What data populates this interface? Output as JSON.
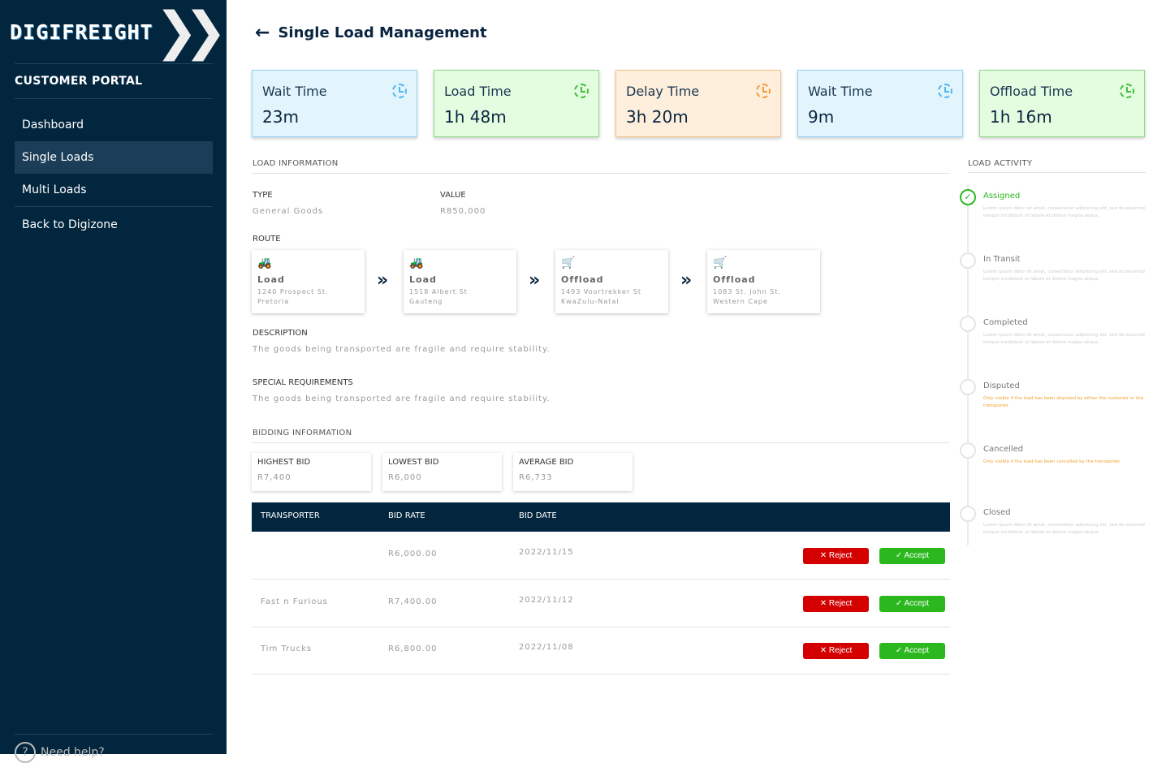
{
  "sidebar": {
    "logo": "DIGIFREIGHT",
    "portal": "CUSTOMER PORTAL",
    "items": [
      {
        "label": "Dashboard"
      },
      {
        "label": "Single Loads"
      },
      {
        "label": "Multi Loads"
      },
      {
        "label": "Back to Digizone"
      }
    ],
    "help": "Need help?"
  },
  "header": {
    "title": "Single Load Management"
  },
  "stats": [
    {
      "label": "Wait Time",
      "value": "23m",
      "color": "#4fb6ef"
    },
    {
      "label": "Load Time",
      "value": "1h 48m",
      "color": "#3fbf3a"
    },
    {
      "label": "Delay Time",
      "value": "3h 20m",
      "color": "#f39a38"
    },
    {
      "label": "Wait Time",
      "value": "9m",
      "color": "#4fb6ef"
    },
    {
      "label": "Offload Time",
      "value": "1h 16m",
      "color": "#3fbf3a"
    }
  ],
  "load_info": {
    "heading": "LOAD INFORMATION",
    "type_label": "TYPE",
    "type": "General Goods",
    "value_label": "VALUE",
    "value": "R850,000",
    "route_label": "ROUTE",
    "route": [
      {
        "type": "Load",
        "line1": "1240 Prospect St.",
        "line2": "Pretoria",
        "icon": "truck-icon"
      },
      {
        "type": "Load",
        "line1": "1518 Albert St",
        "line2": "Gauteng",
        "icon": "truck-icon"
      },
      {
        "type": "Offload",
        "line1": "1493 Voortrekker St",
        "line2": "KwaZulu-Natal",
        "icon": "dolly-icon"
      },
      {
        "type": "Offload",
        "line1": "1083 St. John St.",
        "line2": "Western Cape",
        "icon": "dolly-icon"
      }
    ],
    "description_label": "DESCRIPTION",
    "description": "The goods being transported are fragile and require stability.",
    "special_label": "SPECIAL REQUIREMENTS",
    "special": "The goods being transported are fragile and require stability."
  },
  "bidding": {
    "heading": "BIDDING INFORMATION",
    "highest_label": "HIGHEST BID",
    "highest": "R7,400",
    "lowest_label": "LOWEST BID",
    "lowest": "R6,000",
    "average_label": "AVERAGE BID",
    "average": "R6,733",
    "columns": [
      "TRANSPORTER",
      "BID RATE",
      "BID DATE"
    ],
    "rows": [
      {
        "transporter": "",
        "rate": "R6,000.00",
        "date": "2022/11/15"
      },
      {
        "transporter": "Fast n Furious",
        "rate": "R7,400.00",
        "date": "2022/11/12"
      },
      {
        "transporter": "Tim Trucks",
        "rate": "R6,800.00",
        "date": "2022/11/08"
      }
    ],
    "reject": "Reject",
    "accept": "Accept"
  },
  "activity": {
    "heading": "LOAD ACTIVITY",
    "items": [
      {
        "name": "Assigned",
        "desc": "Lorem ipsum dolor sit amet, consectetur adipiscing elit, sed do eiusmod tempor incididunt ut labore et dolore magna aliqua."
      },
      {
        "name": "In Transit",
        "desc": "Lorem ipsum dolor sit amet, consectetur adipiscing elit, sed do eiusmod tempor incididunt ut labore et dolore magna aliqua."
      },
      {
        "name": "Completed",
        "desc": "Lorem ipsum dolor sit amet, consectetur adipiscing elit, sed do eiusmod tempor incididunt ut labore et dolore magna aliqua."
      },
      {
        "name": "Disputed",
        "desc": "Only visible if the load has been disputed by either the customer or the transporter"
      },
      {
        "name": "Cancelled",
        "desc": "Only visible if the load has been cancelled by the transporter"
      },
      {
        "name": "Closed",
        "desc": "Lorem ipsum dolor sit amet, consectetur adipiscing elit, sed do eiusmod tempor incididunt ut labore et dolore magna aliqua."
      }
    ]
  }
}
